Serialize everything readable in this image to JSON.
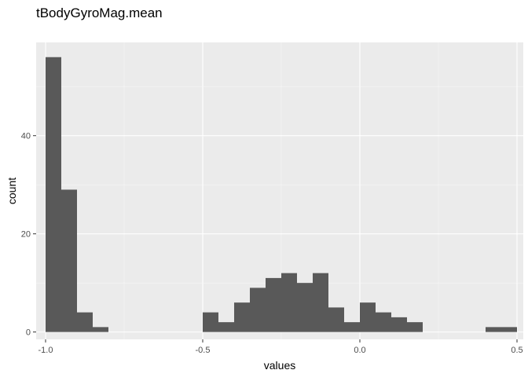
{
  "chart_data": {
    "type": "bar",
    "title": "tBodyGyroMag.mean",
    "xlabel": "values",
    "ylabel": "count",
    "xlim": [
      -1.03,
      0.52
    ],
    "ylim": [
      -1.5,
      59
    ],
    "x_ticks": [
      -1.0,
      -0.5,
      0.0,
      0.5
    ],
    "x_tick_labels": [
      "-1.0",
      "-0.5",
      "0.0",
      "0.5"
    ],
    "y_ticks": [
      0,
      20,
      40
    ],
    "y_tick_labels": [
      "0",
      "20",
      "40"
    ],
    "grid": true,
    "bin_width": 0.05,
    "bins": [
      {
        "x": -0.975,
        "count": 56
      },
      {
        "x": -0.925,
        "count": 29
      },
      {
        "x": -0.875,
        "count": 4
      },
      {
        "x": -0.825,
        "count": 1
      },
      {
        "x": -0.475,
        "count": 4
      },
      {
        "x": -0.425,
        "count": 2
      },
      {
        "x": -0.375,
        "count": 6
      },
      {
        "x": -0.325,
        "count": 9
      },
      {
        "x": -0.275,
        "count": 11
      },
      {
        "x": -0.225,
        "count": 12
      },
      {
        "x": -0.175,
        "count": 10
      },
      {
        "x": -0.125,
        "count": 12
      },
      {
        "x": -0.075,
        "count": 5
      },
      {
        "x": -0.025,
        "count": 2
      },
      {
        "x": 0.025,
        "count": 6
      },
      {
        "x": 0.075,
        "count": 4
      },
      {
        "x": 0.125,
        "count": 3
      },
      {
        "x": 0.175,
        "count": 2
      },
      {
        "x": 0.425,
        "count": 1
      },
      {
        "x": 0.475,
        "count": 1
      }
    ],
    "colors": {
      "bar": "#595959",
      "panel": "#ebebeb"
    }
  }
}
